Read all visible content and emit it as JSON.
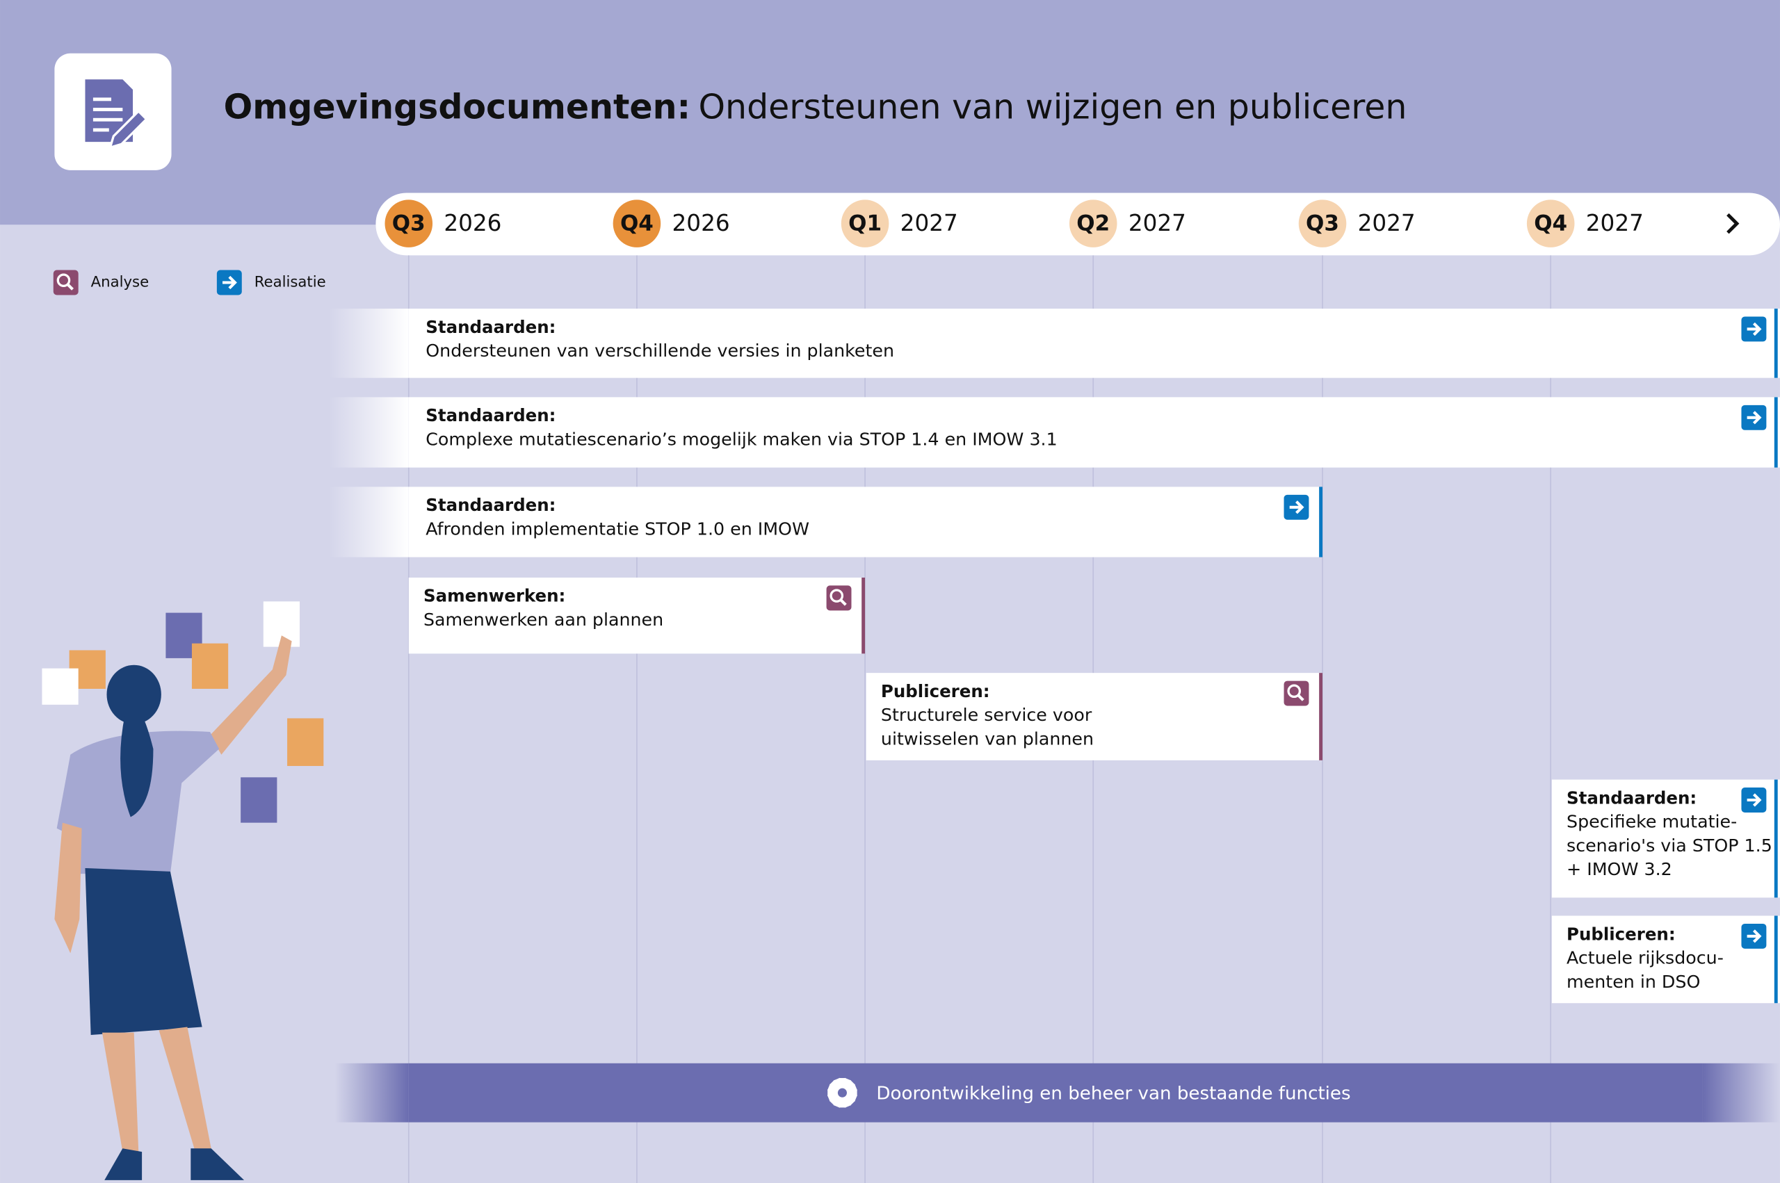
{
  "header": {
    "title_bold": "Omgevingsdocumenten:",
    "title": "Ondersteunen van wijzigen en publiceren"
  },
  "timeline": {
    "quarters": [
      {
        "quarter": "Q3",
        "year": "2026"
      },
      {
        "quarter": "Q4",
        "year": "2026"
      },
      {
        "quarter": "Q1",
        "year": "2027"
      },
      {
        "quarter": "Q2",
        "year": "2027"
      },
      {
        "quarter": "Q3",
        "year": "2027"
      },
      {
        "quarter": "Q4",
        "year": "2027"
      }
    ]
  },
  "legend": [
    "Analyse",
    "Realisatie"
  ],
  "items": [
    {
      "category": "Standaarden:",
      "lines": [
        "Ondersteunen van verschillende versies in planketen"
      ],
      "phase": "Realisatie"
    },
    {
      "category": "Standaarden:",
      "lines": [
        "Complexe mutatiescenario’s mogelijk maken via STOP 1.4 en IMOW 3.1"
      ],
      "phase": "Realisatie"
    },
    {
      "category": "Standaarden:",
      "lines": [
        "Afronden implementatie STOP 1.0 en IMOW"
      ],
      "phase": "Realisatie"
    },
    {
      "category": "Samenwerken:",
      "lines": [
        "Samenwerken aan plannen"
      ],
      "phase": "Analyse"
    },
    {
      "category": "Publiceren:",
      "lines": [
        "Structurele service voor",
        "uitwisselen van plannen"
      ],
      "phase": "Analyse"
    },
    {
      "category": "Standaarden:",
      "lines": [
        "Specifieke mutatie-",
        "scenario's via STOP 1.5",
        "+ IMOW 3.2"
      ],
      "phase": "Realisatie"
    },
    {
      "category": "Publiceren:",
      "lines": [
        "Actuele rijksdocu-",
        "menten in DSO"
      ],
      "phase": "Realisatie"
    }
  ],
  "footer": {
    "text": "Doorontwikkeling en beheer van bestaande functies"
  }
}
